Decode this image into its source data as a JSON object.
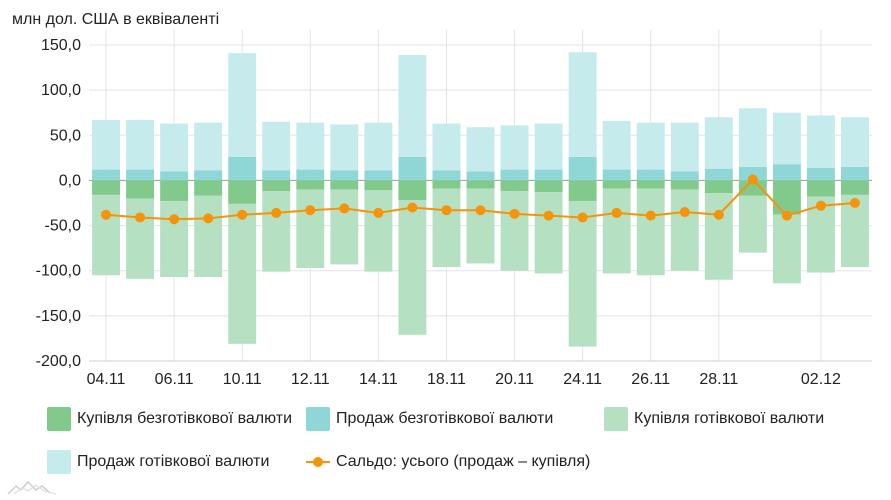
{
  "chart_data": {
    "type": "bar",
    "unit_label": "млн дол. США в еквіваленті",
    "ylim": [
      -200,
      150
    ],
    "yticks": [
      "150,0",
      "100,0",
      "50,0",
      "0,0",
      "-50,0",
      "-100,0",
      "-150,0",
      "-200,0"
    ],
    "ytick_values": [
      150,
      100,
      50,
      0,
      -50,
      -100,
      -150,
      -200
    ],
    "x_tick_labels": [
      {
        "index": 0,
        "label": "04.11"
      },
      {
        "index": 2,
        "label": "06.11"
      },
      {
        "index": 4,
        "label": "10.11"
      },
      {
        "index": 6,
        "label": "12.11"
      },
      {
        "index": 8,
        "label": "14.11"
      },
      {
        "index": 10,
        "label": "18.11"
      },
      {
        "index": 12,
        "label": "20.11"
      },
      {
        "index": 14,
        "label": "24.11"
      },
      {
        "index": 16,
        "label": "26.11"
      },
      {
        "index": 18,
        "label": "28.11"
      },
      {
        "index": 21,
        "label": "02.12"
      }
    ],
    "grid": true,
    "legend_position": "bottom",
    "series": [
      {
        "name": "Купівля безготівкової валюти",
        "kind": "bar",
        "color": "#82c98c",
        "values": [
          -16,
          -20,
          -23,
          -17,
          -26,
          -12,
          -10,
          -10,
          -11,
          -22,
          -9,
          -9,
          -12,
          -13,
          -23,
          -9,
          -9,
          -10,
          -14,
          -17,
          -38,
          -18,
          -16
        ]
      },
      {
        "name": "Продаж безготівкової валюти",
        "kind": "bar",
        "color": "#8fd6d6",
        "values": [
          12,
          12,
          10,
          11,
          26,
          11,
          12,
          11,
          11,
          26,
          11,
          10,
          12,
          12,
          26,
          12,
          12,
          10,
          13,
          15,
          18,
          14,
          15
        ]
      },
      {
        "name": "Купівля готівкової валюти",
        "kind": "bar",
        "color": "#b6e0c2",
        "values": [
          -89,
          -89,
          -84,
          -90,
          -155,
          -89,
          -87,
          -83,
          -90,
          -149,
          -87,
          -83,
          -88,
          -90,
          -161,
          -94,
          -96,
          -90,
          -96,
          -63,
          -76,
          -84,
          -80
        ]
      },
      {
        "name": "Продаж готівкової валюти",
        "kind": "bar",
        "color": "#c5ebec",
        "values": [
          55,
          55,
          53,
          53,
          115,
          54,
          52,
          51,
          53,
          113,
          52,
          49,
          49,
          51,
          116,
          54,
          52,
          54,
          57,
          65,
          57,
          58,
          55
        ]
      },
      {
        "name": "Сальдо: усього (продаж – купівля)",
        "kind": "line",
        "color": "#f5930a",
        "values": [
          -38,
          -41,
          -43,
          -42,
          -38,
          -36,
          -33,
          -31,
          -36,
          -30,
          -33,
          -33,
          -37,
          -39,
          -41,
          -36,
          -39,
          -35,
          -38,
          1,
          -39,
          -28,
          -25
        ]
      }
    ]
  }
}
